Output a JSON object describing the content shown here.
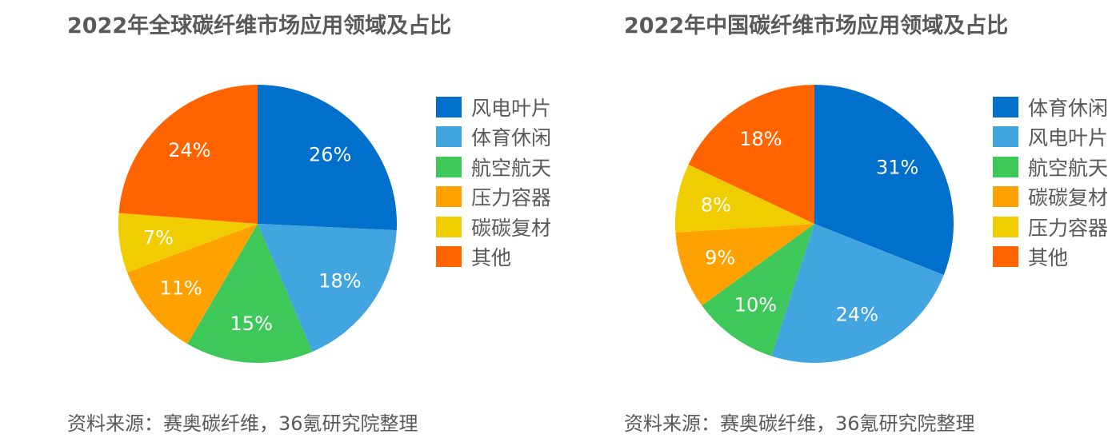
{
  "chart_data": [
    {
      "type": "pie",
      "title": "2022年全球碳纤维市场应用领域及占比",
      "slices": [
        {
          "label": "风电叶片",
          "value": 26,
          "display": "26%",
          "color": "#0070cc"
        },
        {
          "label": "体育休闲",
          "value": 18,
          "display": "18%",
          "color": "#42a5df"
        },
        {
          "label": "航空航天",
          "value": 15,
          "display": "15%",
          "color": "#3fc85a"
        },
        {
          "label": "压力容器",
          "value": 11,
          "display": "11%",
          "color": "#ffa100"
        },
        {
          "label": "碳碳复材",
          "value": 7,
          "display": "7%",
          "color": "#efcd00"
        },
        {
          "label": "其他",
          "value": 24,
          "display": "24%",
          "color": "#ff6400"
        }
      ],
      "legend_position": "right",
      "source": "资料来源：赛奥碳纤维，36氪研究院整理"
    },
    {
      "type": "pie",
      "title": "2022年中国碳纤维市场应用领域及占比",
      "slices": [
        {
          "label": "体育休闲",
          "value": 31,
          "display": "31%",
          "color": "#0070cc"
        },
        {
          "label": "风电叶片",
          "value": 24,
          "display": "24%",
          "color": "#42a5df"
        },
        {
          "label": "航空航天",
          "value": 10,
          "display": "10%",
          "color": "#3fc85a"
        },
        {
          "label": "碳碳复材",
          "value": 9,
          "display": "9%",
          "color": "#ffa100"
        },
        {
          "label": "压力容器",
          "value": 8,
          "display": "8%",
          "color": "#efcd00"
        },
        {
          "label": "其他",
          "value": 18,
          "display": "18%",
          "color": "#ff6400"
        }
      ],
      "legend_position": "right",
      "source": "资料来源：赛奥碳纤维，36氪研究院整理"
    }
  ]
}
